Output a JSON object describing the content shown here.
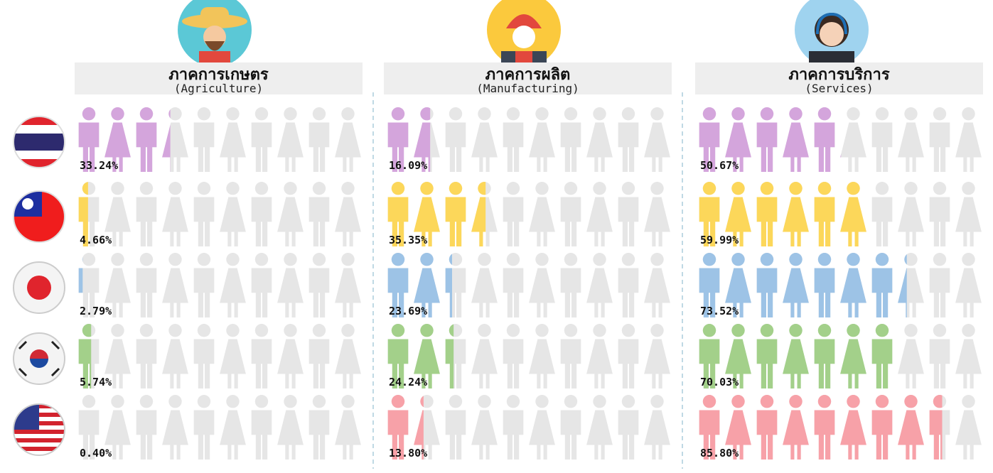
{
  "chart_data": [
    {
      "type": "pictograph",
      "title": "ภาคการเกษตร",
      "subtitle": "(Agriculture)",
      "values": [
        33.24,
        4.66,
        2.79,
        5.74,
        0.4
      ],
      "value_labels": [
        "33.24%",
        "4.66%",
        "2.79%",
        "5.74%",
        "0.40%"
      ],
      "colors": [
        "#d4a5dc",
        "#fcd75a",
        "#9dc3e6",
        "#a3d08a",
        "#f7a1a8"
      ]
    },
    {
      "type": "pictograph",
      "title": "ภาคการผลิต",
      "subtitle": "(Manufacturing)",
      "values": [
        16.09,
        35.35,
        23.69,
        24.24,
        13.8
      ],
      "value_labels": [
        "16.09%",
        "35.35%",
        "23.69%",
        "24.24%",
        "13.80%"
      ],
      "colors": [
        "#d4a5dc",
        "#fcd75a",
        "#9dc3e6",
        "#a3d08a",
        "#f7a1a8"
      ]
    },
    {
      "type": "pictograph",
      "title": "ภาคการบริการ",
      "subtitle": "(Services)",
      "values": [
        50.67,
        59.99,
        73.52,
        70.03,
        85.8
      ],
      "value_labels": [
        "50.67%",
        "59.99%",
        "73.52%",
        "70.03%",
        "85.80%"
      ],
      "colors": [
        "#d4a5dc",
        "#fcd75a",
        "#9dc3e6",
        "#a3d08a",
        "#f7a1a8"
      ]
    }
  ]
}
